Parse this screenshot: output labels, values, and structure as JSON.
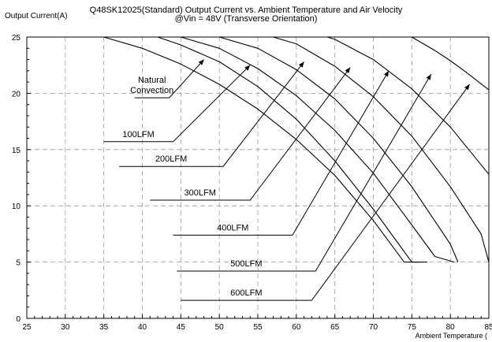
{
  "chart_data": {
    "type": "line",
    "title": "Q48SK12025(Standard)  Output Current vs. Ambient Temperature and Air Velocity",
    "subtitle": "@Vin = 48V (Transverse Orientation)",
    "xlabel": "Ambient Temperature (",
    "ylabel": "Output Current(A)",
    "xlim": [
      25,
      85
    ],
    "ylim": [
      0,
      25
    ],
    "x_ticks": [
      25,
      30,
      35,
      40,
      45,
      50,
      55,
      60,
      65,
      70,
      75,
      80,
      85
    ],
    "y_ticks": [
      0,
      5,
      10,
      15,
      20,
      25
    ],
    "grid": "dashed",
    "series": [
      {
        "name": "Natural Convection",
        "x": [
          25,
          35,
          40,
          45,
          50,
          55,
          60,
          65,
          70,
          74,
          76
        ],
        "y": [
          25,
          25,
          24.0,
          22.6,
          20.8,
          18.6,
          15.9,
          12.7,
          8.7,
          5.0,
          5.0
        ]
      },
      {
        "name": "100LFM",
        "x": [
          25,
          42,
          45,
          50,
          55,
          60,
          65,
          70,
          75,
          77
        ],
        "y": [
          25,
          25,
          24.3,
          22.8,
          20.6,
          17.7,
          14.0,
          9.7,
          5.0,
          5.0
        ]
      },
      {
        "name": "200LFM",
        "x": [
          25,
          45,
          50,
          55,
          60,
          65,
          70,
          75,
          78,
          80.5
        ],
        "y": [
          25,
          25,
          24.0,
          22.2,
          19.8,
          16.7,
          12.9,
          8.3,
          5.5,
          5.0
        ]
      },
      {
        "name": "300LFM",
        "x": [
          25,
          50,
          55,
          60,
          65,
          70,
          75,
          80,
          81
        ],
        "y": [
          25,
          25,
          24.0,
          22.1,
          19.5,
          16.0,
          11.7,
          6.6,
          5.0
        ]
      },
      {
        "name": "400LFM",
        "x": [
          25,
          57,
          60,
          65,
          70,
          75,
          80,
          84,
          85
        ],
        "y": [
          25,
          25,
          24.4,
          22.4,
          19.7,
          16.2,
          11.7,
          7.5,
          5.0
        ]
      },
      {
        "name": "500LFM",
        "x": [
          25,
          64,
          65,
          70,
          75,
          80,
          85
        ],
        "y": [
          25,
          25,
          24.8,
          23.0,
          20.4,
          17.0,
          12.8
        ]
      },
      {
        "name": "600LFM",
        "x": [
          25,
          75,
          78,
          80,
          82,
          85
        ],
        "y": [
          25,
          25,
          23.8,
          22.9,
          21.9,
          20.3
        ]
      }
    ],
    "annotations": [
      {
        "lines": [
          "Natural",
          "Convection"
        ],
        "tail": [
          39,
          19.6
        ],
        "knee": [
          43.5,
          19.6
        ],
        "head": [
          48,
          23
        ]
      },
      {
        "lines": [
          "100LFM"
        ],
        "tail": [
          35,
          15.7
        ],
        "knee": [
          44,
          15.7
        ],
        "head": [
          54,
          22.5
        ]
      },
      {
        "lines": [
          "200LFM"
        ],
        "tail": [
          37,
          13.5
        ],
        "knee": [
          50.5,
          13.5
        ],
        "head": [
          61,
          22.8
        ]
      },
      {
        "lines": [
          "300LFM"
        ],
        "tail": [
          41,
          10.5
        ],
        "knee": [
          54,
          10.5
        ],
        "head": [
          67,
          22.3
        ]
      },
      {
        "lines": [
          "400LFM"
        ],
        "tail": [
          44,
          7.4
        ],
        "knee": [
          59.5,
          7.4
        ],
        "head": [
          72,
          22.0
        ]
      },
      {
        "lines": [
          "500LFM"
        ],
        "tail": [
          44.5,
          4.2
        ],
        "knee": [
          62.5,
          4.2
        ],
        "head": [
          77.5,
          21.7
        ]
      },
      {
        "lines": [
          "600LFM"
        ],
        "tail": [
          45,
          1.6
        ],
        "knee": [
          62,
          1.6
        ],
        "head": [
          82.5,
          20.8
        ]
      }
    ]
  }
}
